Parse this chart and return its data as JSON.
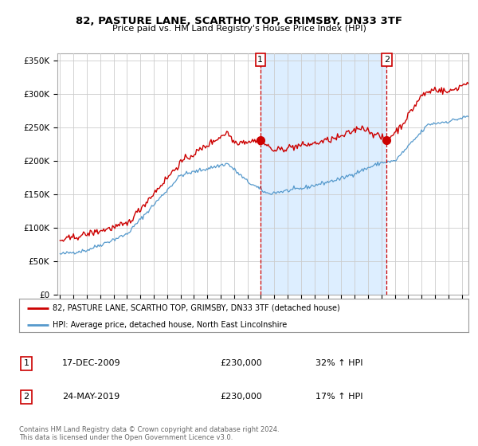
{
  "title": "82, PASTURE LANE, SCARTHO TOP, GRIMSBY, DN33 3TF",
  "subtitle": "Price paid vs. HM Land Registry's House Price Index (HPI)",
  "legend_line1": "82, PASTURE LANE, SCARTHO TOP, GRIMSBY, DN33 3TF (detached house)",
  "legend_line2": "HPI: Average price, detached house, North East Lincolnshire",
  "sale1_date": "17-DEC-2009",
  "sale1_price": "£230,000",
  "sale1_hpi": "32% ↑ HPI",
  "sale2_date": "24-MAY-2019",
  "sale2_price": "£230,000",
  "sale2_hpi": "17% ↑ HPI",
  "vline1_x": 2009.96,
  "vline2_x": 2019.39,
  "sale1_y": 230000,
  "sale2_y": 230000,
  "footnote": "Contains HM Land Registry data © Crown copyright and database right 2024.\nThis data is licensed under the Open Government Licence v3.0.",
  "ylim": [
    0,
    360000
  ],
  "xlim": [
    1994.8,
    2025.5
  ],
  "property_color": "#cc0000",
  "hpi_color": "#5599cc",
  "shade_color": "#ddeeff",
  "vline_color": "#cc0000",
  "background_color": "#ffffff",
  "plot_background": "#ffffff",
  "grid_color": "#cccccc"
}
